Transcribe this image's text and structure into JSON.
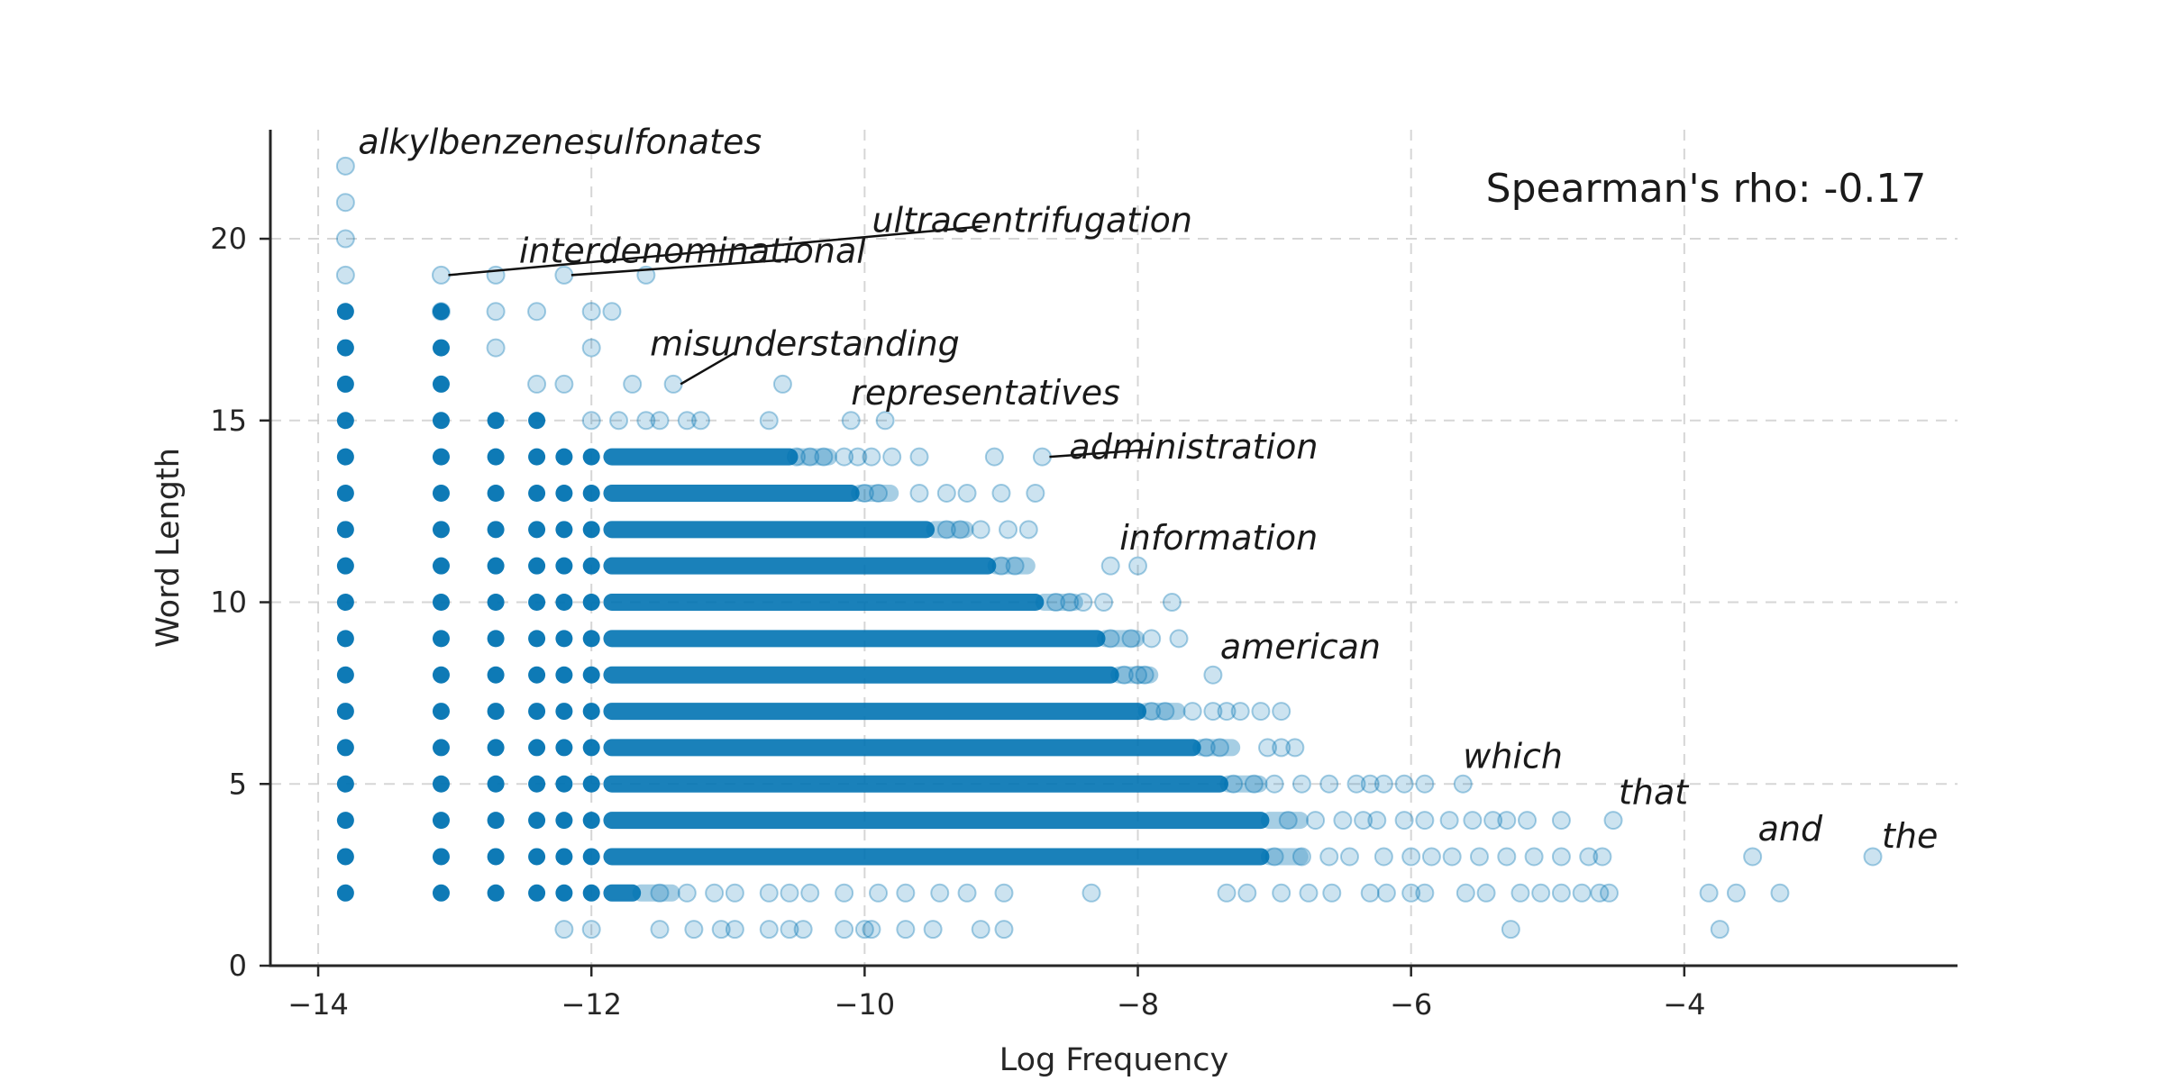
{
  "chart_data": {
    "type": "scatter",
    "xlabel": "Log Frequency",
    "ylabel": "Word Length",
    "xlim": [
      -14.35,
      -2.0
    ],
    "ylim": [
      0,
      23
    ],
    "xticks": [
      -14,
      -12,
      -10,
      -8,
      -6,
      -4
    ],
    "xtick_labels": [
      "−14",
      "−12",
      "−10",
      "−8",
      "−6",
      "−4"
    ],
    "yticks": [
      0,
      5,
      10,
      15,
      20
    ],
    "ytick_labels": [
      "0",
      "5",
      "10",
      "15",
      "20"
    ],
    "grid": true,
    "annotation": "Spearman's rho: -0.17",
    "colors": {
      "points": "#0173b2",
      "text": "#1a1a1a",
      "grid": "#cccccc"
    },
    "points": [
      [
        -13.8,
        22
      ],
      [
        -13.8,
        21
      ],
      [
        -13.8,
        20
      ],
      [
        -13.8,
        19
      ],
      [
        -13.1,
        19
      ],
      [
        -12.7,
        19
      ],
      [
        -12.2,
        19
      ],
      [
        -11.6,
        19
      ],
      [
        -13.1,
        18
      ],
      [
        -12.7,
        18
      ],
      [
        -12.4,
        18
      ],
      [
        -12.0,
        18
      ],
      [
        -11.85,
        18
      ],
      [
        -12.7,
        17
      ],
      [
        -12.0,
        17
      ],
      [
        -12.4,
        16
      ],
      [
        -12.2,
        16
      ],
      [
        -11.7,
        16
      ],
      [
        -11.4,
        16
      ],
      [
        -10.6,
        16
      ],
      [
        -12.0,
        15
      ],
      [
        -11.8,
        15
      ],
      [
        -11.6,
        15
      ],
      [
        -11.5,
        15
      ],
      [
        -11.3,
        15
      ],
      [
        -11.2,
        15
      ],
      [
        -10.7,
        15
      ],
      [
        -10.1,
        15
      ],
      [
        -9.85,
        15
      ],
      [
        -10.5,
        14
      ],
      [
        -10.4,
        14
      ],
      [
        -10.3,
        14
      ],
      [
        -10.15,
        14
      ],
      [
        -10.05,
        14
      ],
      [
        -9.95,
        14
      ],
      [
        -9.8,
        14
      ],
      [
        -9.6,
        14
      ],
      [
        -9.05,
        14
      ],
      [
        -8.7,
        14
      ],
      [
        -10.0,
        13
      ],
      [
        -9.9,
        13
      ],
      [
        -9.6,
        13
      ],
      [
        -9.4,
        13
      ],
      [
        -9.25,
        13
      ],
      [
        -9.0,
        13
      ],
      [
        -8.75,
        13
      ],
      [
        -9.4,
        12
      ],
      [
        -9.3,
        12
      ],
      [
        -9.15,
        12
      ],
      [
        -8.95,
        12
      ],
      [
        -8.8,
        12
      ],
      [
        -9.0,
        11
      ],
      [
        -8.9,
        11
      ],
      [
        -8.2,
        11
      ],
      [
        -8.0,
        11
      ],
      [
        -8.6,
        10
      ],
      [
        -8.5,
        10
      ],
      [
        -8.4,
        10
      ],
      [
        -8.25,
        10
      ],
      [
        -7.75,
        10
      ],
      [
        -8.2,
        9
      ],
      [
        -8.05,
        9
      ],
      [
        -7.9,
        9
      ],
      [
        -7.7,
        9
      ],
      [
        -8.1,
        8
      ],
      [
        -8.0,
        8
      ],
      [
        -7.95,
        8
      ],
      [
        -7.45,
        8
      ],
      [
        -7.9,
        7
      ],
      [
        -7.8,
        7
      ],
      [
        -7.6,
        7
      ],
      [
        -7.45,
        7
      ],
      [
        -7.35,
        7
      ],
      [
        -7.25,
        7
      ],
      [
        -7.1,
        7
      ],
      [
        -6.95,
        7
      ],
      [
        -7.5,
        6
      ],
      [
        -7.4,
        6
      ],
      [
        -7.05,
        6
      ],
      [
        -6.95,
        6
      ],
      [
        -6.85,
        6
      ],
      [
        -7.3,
        5
      ],
      [
        -7.15,
        5
      ],
      [
        -7.0,
        5
      ],
      [
        -6.8,
        5
      ],
      [
        -6.6,
        5
      ],
      [
        -6.4,
        5
      ],
      [
        -6.3,
        5
      ],
      [
        -6.2,
        5
      ],
      [
        -6.05,
        5
      ],
      [
        -5.9,
        5
      ],
      [
        -5.62,
        5
      ],
      [
        -6.9,
        4
      ],
      [
        -6.7,
        4
      ],
      [
        -6.5,
        4
      ],
      [
        -6.35,
        4
      ],
      [
        -6.25,
        4
      ],
      [
        -6.05,
        4
      ],
      [
        -5.9,
        4
      ],
      [
        -5.72,
        4
      ],
      [
        -5.55,
        4
      ],
      [
        -5.4,
        4
      ],
      [
        -5.3,
        4
      ],
      [
        -5.15,
        4
      ],
      [
        -4.9,
        4
      ],
      [
        -4.52,
        4
      ],
      [
        -7.0,
        3
      ],
      [
        -6.8,
        3
      ],
      [
        -6.6,
        3
      ],
      [
        -6.45,
        3
      ],
      [
        -6.2,
        3
      ],
      [
        -6.0,
        3
      ],
      [
        -5.85,
        3
      ],
      [
        -5.7,
        3
      ],
      [
        -5.5,
        3
      ],
      [
        -5.3,
        3
      ],
      [
        -5.1,
        3
      ],
      [
        -4.9,
        3
      ],
      [
        -4.7,
        3
      ],
      [
        -4.6,
        3
      ],
      [
        -3.5,
        3
      ],
      [
        -2.62,
        3
      ],
      [
        -11.5,
        2
      ],
      [
        -11.3,
        2
      ],
      [
        -11.1,
        2
      ],
      [
        -10.95,
        2
      ],
      [
        -10.7,
        2
      ],
      [
        -10.55,
        2
      ],
      [
        -10.4,
        2
      ],
      [
        -10.15,
        2
      ],
      [
        -9.9,
        2
      ],
      [
        -9.7,
        2
      ],
      [
        -9.45,
        2
      ],
      [
        -9.25,
        2
      ],
      [
        -8.98,
        2
      ],
      [
        -8.34,
        2
      ],
      [
        -7.35,
        2
      ],
      [
        -7.2,
        2
      ],
      [
        -6.95,
        2
      ],
      [
        -6.75,
        2
      ],
      [
        -6.58,
        2
      ],
      [
        -6.3,
        2
      ],
      [
        -6.18,
        2
      ],
      [
        -6.0,
        2
      ],
      [
        -5.9,
        2
      ],
      [
        -5.6,
        2
      ],
      [
        -5.45,
        2
      ],
      [
        -5.2,
        2
      ],
      [
        -5.05,
        2
      ],
      [
        -4.9,
        2
      ],
      [
        -4.75,
        2
      ],
      [
        -4.62,
        2
      ],
      [
        -4.55,
        2
      ],
      [
        -3.82,
        2
      ],
      [
        -3.62,
        2
      ],
      [
        -3.3,
        2
      ],
      [
        -12.2,
        1
      ],
      [
        -12.0,
        1
      ],
      [
        -11.5,
        1
      ],
      [
        -11.25,
        1
      ],
      [
        -11.05,
        1
      ],
      [
        -10.95,
        1
      ],
      [
        -10.7,
        1
      ],
      [
        -10.55,
        1
      ],
      [
        -10.45,
        1
      ],
      [
        -10.15,
        1
      ],
      [
        -10.0,
        1
      ],
      [
        -9.95,
        1
      ],
      [
        -9.7,
        1
      ],
      [
        -9.5,
        1
      ],
      [
        -9.15,
        1
      ],
      [
        -8.98,
        1
      ],
      [
        -5.27,
        1
      ],
      [
        -3.74,
        1
      ]
    ],
    "bands": [
      {
        "y": 18,
        "x_end": -13.1
      },
      {
        "y": 17,
        "x_end": -13.1
      },
      {
        "y": 16,
        "x_end": -13.1
      },
      {
        "y": 15,
        "x_end": -12.4
      },
      {
        "y": 14,
        "x_end": -10.55
      },
      {
        "y": 13,
        "x_end": -10.1
      },
      {
        "y": 12,
        "x_end": -9.55
      },
      {
        "y": 11,
        "x_end": -9.1
      },
      {
        "y": 10,
        "x_end": -8.75
      },
      {
        "y": 9,
        "x_end": -8.3
      },
      {
        "y": 8,
        "x_end": -8.2
      },
      {
        "y": 7,
        "x_end": -8.0
      },
      {
        "y": 6,
        "x_end": -7.6
      },
      {
        "y": 5,
        "x_end": -7.4
      },
      {
        "y": 4,
        "x_end": -7.1
      },
      {
        "y": 3,
        "x_end": -7.1
      },
      {
        "y": 2,
        "x_end": -11.7
      }
    ],
    "labels": [
      {
        "text": "alkylbenzenesulfonates",
        "x": -13.8,
        "y": 22,
        "leader": false
      },
      {
        "text": "ultracentrifugation",
        "x": -13.1,
        "y": 19,
        "leader": true
      },
      {
        "text": "interdenominational",
        "x": -12.2,
        "y": 19,
        "leader": true
      },
      {
        "text": "misunderstanding",
        "x": -11.4,
        "y": 16,
        "leader": true
      },
      {
        "text": "representatives",
        "x": -10.1,
        "y": 15,
        "leader": false
      },
      {
        "text": "administration",
        "x": -8.7,
        "y": 14,
        "leader": true
      },
      {
        "text": "information",
        "x": -8.2,
        "y": 11,
        "leader": false
      },
      {
        "text": "american",
        "x": -7.45,
        "y": 8,
        "leader": false
      },
      {
        "text": "which",
        "x": -5.62,
        "y": 5,
        "leader": false
      },
      {
        "text": "that",
        "x": -4.52,
        "y": 4,
        "leader": false
      },
      {
        "text": "and",
        "x": -3.5,
        "y": 3,
        "leader": false
      },
      {
        "text": "the",
        "x": -2.62,
        "y": 3,
        "leader": false
      }
    ]
  }
}
